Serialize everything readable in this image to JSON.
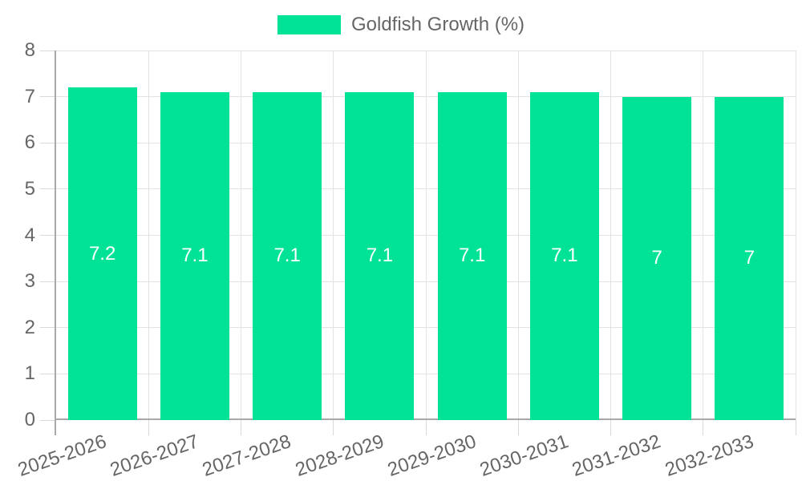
{
  "chart_data": {
    "type": "bar",
    "title": "",
    "legend_label": "Goldfish Growth (%)",
    "legend_position": "top",
    "categories": [
      "2025-2026",
      "2026-2027",
      "2027-2028",
      "2028-2029",
      "2029-2030",
      "2030-2031",
      "2031-2032",
      "2032-2033"
    ],
    "series": [
      {
        "name": "Goldfish Growth (%)",
        "values": [
          7.2,
          7.1,
          7.1,
          7.1,
          7.1,
          7.1,
          7,
          7
        ]
      }
    ],
    "value_labels": [
      "7.2",
      "7.1",
      "7.1",
      "7.1",
      "7.1",
      "7.1",
      "7",
      "7"
    ],
    "xlabel": "",
    "ylabel": "",
    "ylim": [
      0,
      8
    ],
    "ytick_labels": [
      "0",
      "1",
      "2",
      "3",
      "4",
      "5",
      "6",
      "7",
      "8"
    ],
    "grid": true,
    "x_label_rotation_deg": -19,
    "colors": {
      "bar": "#00e396",
      "bar_value_text": "#ffffff",
      "axis_text": "#666666",
      "grid_line": "#e3e3e3",
      "tick_mark": "#d9d9d9",
      "axis_line": "#a8a8a8",
      "background": "#ffffff"
    }
  }
}
